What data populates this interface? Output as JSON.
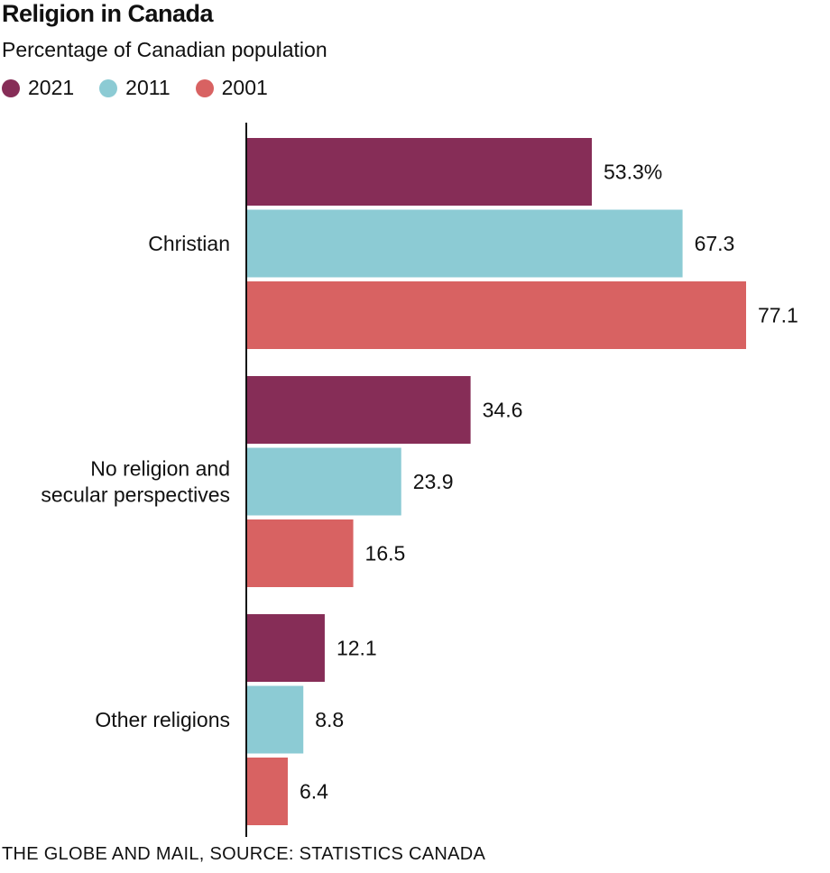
{
  "chart_data": {
    "type": "bar",
    "orientation": "horizontal",
    "title": "Religion in Canada",
    "subtitle": "Percentage of Canadian population",
    "categories": [
      {
        "name": "Christian",
        "lines": [
          "Christian"
        ]
      },
      {
        "name": "No religion and secular perspectives",
        "lines": [
          "No religion and",
          "secular perspectives"
        ]
      },
      {
        "name": "Other religions",
        "lines": [
          "Other religions"
        ]
      }
    ],
    "series": [
      {
        "name": "2021",
        "color": "#862d57",
        "values": [
          53.3,
          34.6,
          12.1
        ],
        "labels": [
          "53.3%",
          "34.6",
          "12.1"
        ]
      },
      {
        "name": "2011",
        "color": "#8ccbd4",
        "values": [
          67.3,
          23.9,
          8.8
        ],
        "labels": [
          "67.3",
          "23.9",
          "8.8"
        ]
      },
      {
        "name": "2001",
        "color": "#d86262",
        "values": [
          77.1,
          16.5,
          6.4
        ],
        "labels": [
          "77.1",
          "16.5",
          "6.4"
        ]
      }
    ],
    "xlim": [
      0,
      77.1
    ],
    "legend_position": "top-left",
    "source": "THE GLOBE AND MAIL, SOURCE: STATISTICS CANADA"
  }
}
